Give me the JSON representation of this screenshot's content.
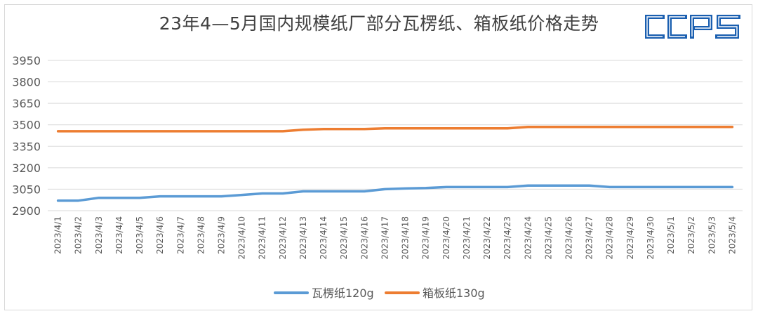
{
  "title": "23年4—5月国内规模纸厂部分瓦楞纸、箱板纸价格走势",
  "logo_text": "CCPS",
  "colors": {
    "series1": "#5b9bd5",
    "series2": "#ed7d31",
    "logo": "#1a5fb0",
    "grid": "#d9d9d9",
    "text": "#595959"
  },
  "chart_data": {
    "type": "line",
    "title": "23年4—5月国内规模纸厂部分瓦楞纸、箱板纸价格走势",
    "xlabel": "",
    "ylabel": "",
    "ylim": [
      2900,
      3950
    ],
    "yticks": [
      2900,
      3050,
      3200,
      3350,
      3500,
      3650,
      3800,
      3950
    ],
    "grid": true,
    "legend_position": "bottom",
    "categories": [
      "2023/4/1",
      "2023/4/2",
      "2023/4/3",
      "2023/4/4",
      "2023/4/5",
      "2023/4/6",
      "2023/4/7",
      "2023/4/8",
      "2023/4/9",
      "2023/4/10",
      "2023/4/11",
      "2023/4/12",
      "2023/4/13",
      "2023/4/14",
      "2023/4/15",
      "2023/4/16",
      "2023/4/17",
      "2023/4/18",
      "2023/4/19",
      "2023/4/20",
      "2023/4/21",
      "2023/4/22",
      "2023/4/23",
      "2023/4/24",
      "2023/4/25",
      "2023/4/26",
      "2023/4/27",
      "2023/4/28",
      "2023/4/29",
      "2023/4/30",
      "2023/5/1",
      "2023/5/2",
      "2023/5/3",
      "2023/5/4"
    ],
    "series": [
      {
        "name": "瓦楞纸120g",
        "values": [
          2970,
          2970,
          2990,
          2990,
          2990,
          3000,
          3000,
          3000,
          3000,
          3010,
          3020,
          3020,
          3035,
          3035,
          3035,
          3035,
          3050,
          3055,
          3058,
          3065,
          3065,
          3065,
          3065,
          3075,
          3075,
          3075,
          3075,
          3065,
          3065,
          3065,
          3065,
          3065,
          3065,
          3065
        ]
      },
      {
        "name": "箱板纸130g",
        "values": [
          3455,
          3455,
          3455,
          3455,
          3455,
          3455,
          3455,
          3455,
          3455,
          3455,
          3455,
          3455,
          3465,
          3470,
          3470,
          3470,
          3475,
          3475,
          3475,
          3475,
          3475,
          3475,
          3475,
          3485,
          3485,
          3485,
          3485,
          3485,
          3485,
          3485,
          3485,
          3485,
          3485,
          3485
        ]
      }
    ]
  }
}
